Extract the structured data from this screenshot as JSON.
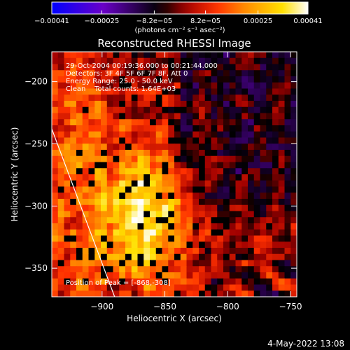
{
  "chart_data": {
    "type": "heatmap",
    "title": "Reconstructed RHESSI Image",
    "xlabel": "Heliocentric X (arcsec)",
    "ylabel": "Heliocentric Y (arcsec)",
    "xlim": [
      -940,
      -745
    ],
    "ylim": [
      -373,
      -176
    ],
    "xticks": [
      -900,
      -850,
      -800,
      -750
    ],
    "yticks": [
      -200,
      -250,
      -300,
      -350
    ],
    "xtick_labels": [
      "−900",
      "−850",
      "−800",
      "−750"
    ],
    "ytick_labels": [
      "−200",
      "−250",
      "−300",
      "−350"
    ],
    "colorbar": {
      "range": [
        -0.00041,
        0.00041
      ],
      "tick_values": [
        -0.00041,
        -0.00025,
        -8.2e-05,
        8.2e-05,
        0.00025,
        0.00041
      ],
      "tick_labels": [
        "−0.00041",
        "−0.00025",
        "−8.2e−05",
        "8.2e−05",
        "0.00025",
        "0.00041"
      ],
      "unit_label": "(photons cm⁻² s⁻¹ asec⁻²)",
      "colors": [
        "#0000ff",
        "#6a00c8",
        "#000000",
        "#a00000",
        "#ff3000",
        "#ff9000",
        "#ffe000",
        "#ffffff"
      ]
    },
    "annotations": [
      "29-Oct-2004 00:19:36.000 to 00:21:44.000",
      "Detectors: 3F 4F 5F 6F 7F 8F, Att 0",
      "Energy Range: 25.0 - 50.0 keV",
      "Clean    Total counts: 1.64E+03"
    ],
    "peak_label": "Position of Peak = [-868,-308]",
    "peak": [
      -868,
      -308
    ],
    "limb_line": {
      "x": [
        -940,
        -890
      ],
      "y": [
        -238,
        -373
      ]
    },
    "footer": "4-May-2022 13:08"
  }
}
